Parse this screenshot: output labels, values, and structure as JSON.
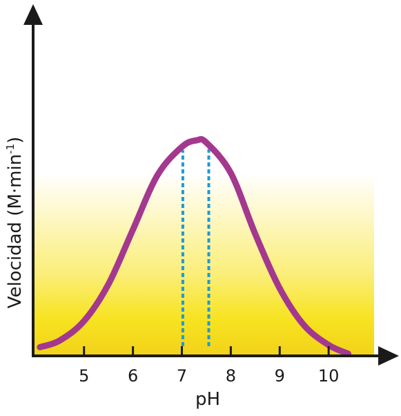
{
  "chart_data": {
    "type": "line",
    "title": "",
    "xlabel": "pH",
    "ylabel": {
      "main": "Velocidad (M·min",
      "sup": "-1",
      "close": ")"
    },
    "xticks": [
      "5",
      "6",
      "7",
      "8",
      "9",
      "10"
    ],
    "xlim": [
      3.96,
      11.07
    ],
    "ylim": [
      0,
      1
    ],
    "y_scale": "relative (no numeric ticks)",
    "grid": false,
    "legend": "none",
    "series": [
      {
        "x": [
          4.1,
          4.5,
          5.0,
          5.5,
          6.0,
          6.5,
          7.0,
          7.3,
          7.5,
          8.0,
          8.5,
          9.0,
          9.5,
          10.0,
          10.4
        ],
        "y": [
          0.04,
          0.07,
          0.16,
          0.33,
          0.58,
          0.83,
          0.96,
          0.99,
          0.98,
          0.84,
          0.56,
          0.31,
          0.14,
          0.05,
          0.01
        ]
      }
    ],
    "reference_lines_x": [
      7.02,
      7.55
    ],
    "colors": {
      "curve": "#a3388e",
      "reference": "#1e9ad6",
      "band_top": "#ffffff",
      "band_bottom": "#f5d800",
      "axis": "#1a1a1a"
    }
  }
}
